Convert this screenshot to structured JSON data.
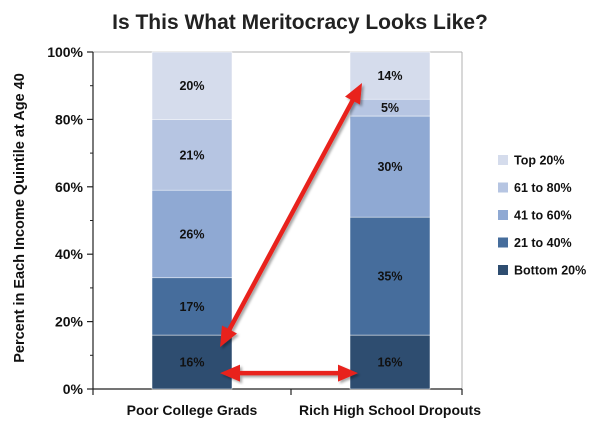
{
  "chart_data": {
    "type": "bar",
    "stacked": true,
    "title": "Is This What Meritocracy Looks Like?",
    "ylabel": "Percent in Each Income Quintile at Age 40",
    "xlabel": "",
    "ylim": [
      0,
      100
    ],
    "yticks": [
      "0%",
      "20%",
      "40%",
      "60%",
      "80%",
      "100%"
    ],
    "categories": [
      "Poor College Grads",
      "Rich High School Dropouts"
    ],
    "series": [
      {
        "name": "Bottom 20%",
        "values": [
          16,
          16
        ],
        "labels": [
          "16%",
          "16%"
        ],
        "color": "#2e4d70"
      },
      {
        "name": "21 to 40%",
        "values": [
          17,
          35
        ],
        "labels": [
          "17%",
          "35%"
        ],
        "color": "#466d9c"
      },
      {
        "name": "41 to 60%",
        "values": [
          26,
          30
        ],
        "labels": [
          "26%",
          "30%"
        ],
        "color": "#8fa9d3"
      },
      {
        "name": "61 to 80%",
        "values": [
          21,
          5
        ],
        "labels": [
          "21%",
          "5%"
        ],
        "color": "#b6c5e2"
      },
      {
        "name": "Top 20%",
        "values": [
          20,
          14
        ],
        "labels": [
          "20%",
          "14%"
        ],
        "color": "#d5dcec"
      }
    ],
    "legend_position": "right",
    "annotations": [
      {
        "type": "double-arrow",
        "from": [
          "Poor College Grads",
          16
        ],
        "to": [
          "Rich High School Dropouts",
          16
        ],
        "color": "#e8201c"
      },
      {
        "type": "double-arrow",
        "from": [
          "Poor College Grads",
          16
        ],
        "to": [
          "Rich High School Dropouts",
          100
        ],
        "color": "#e8201c"
      }
    ]
  }
}
